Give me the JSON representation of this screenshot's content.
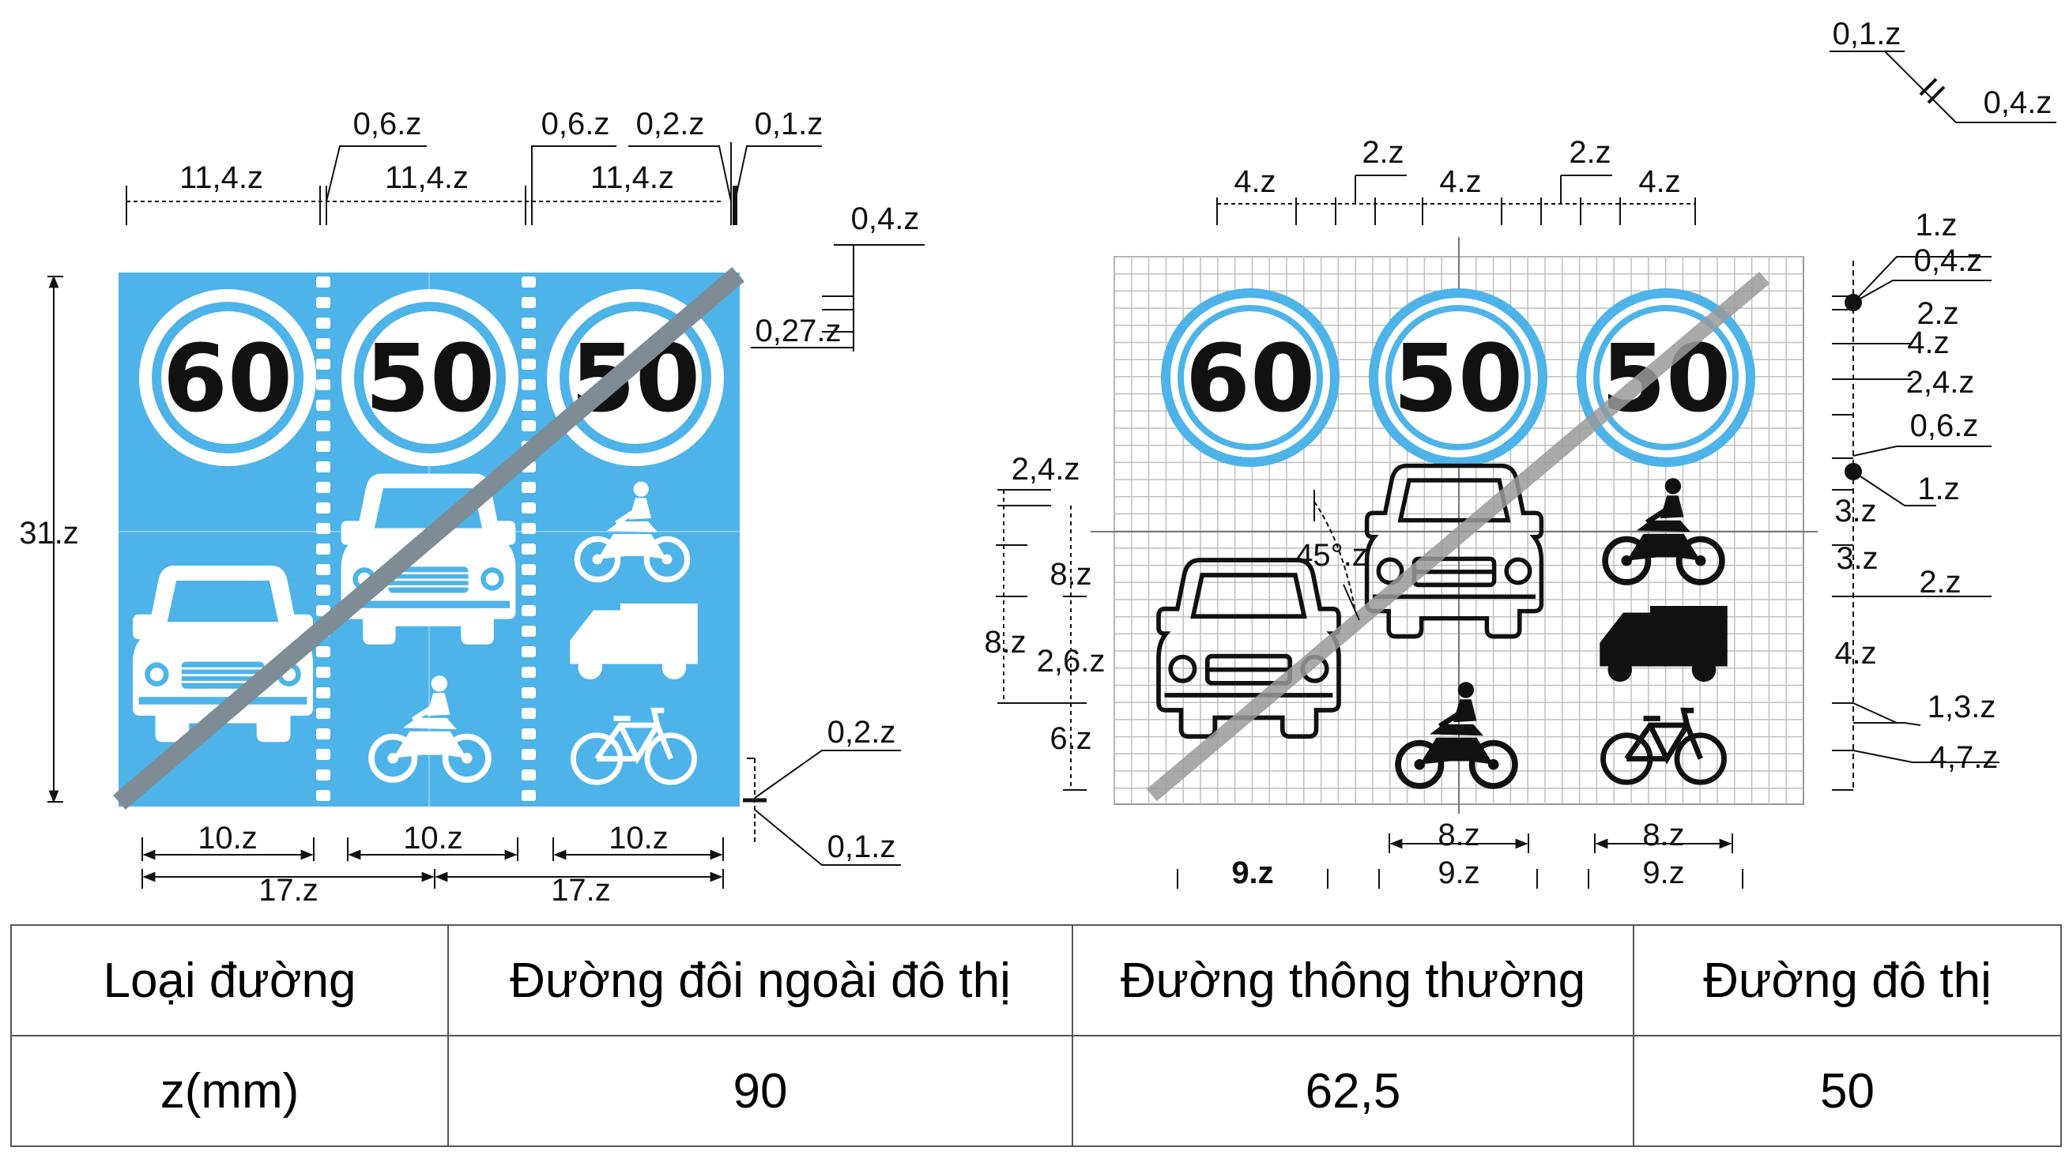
{
  "left_sign": {
    "colors": {
      "background": "#4db3e8",
      "stripe": "#ffffff",
      "bar": "#7e8c96",
      "ring": "#ffffff"
    },
    "speeds": [
      "60",
      "50",
      "50"
    ],
    "dims_top": [
      "11,4.z",
      "11,4.z",
      "11,4.z"
    ],
    "dims_top_small": [
      "0,6.z",
      "0,6.z",
      "0,2.z",
      "0,1.z"
    ],
    "dims_right": [
      "0,4.z",
      "0,27.z",
      "0,2.z",
      "0,1.z"
    ],
    "dim_height": "31.z",
    "dims_bottom": [
      "10.z",
      "10.z",
      "10.z"
    ],
    "dims_bottom2": [
      "17.z",
      "17.z"
    ]
  },
  "right_sign": {
    "colors": {
      "grid": "#bfbfbf",
      "ring": "#4db3e8",
      "bar": "#9a9a9a"
    },
    "speeds": [
      "60",
      "50",
      "50"
    ],
    "dims_top": [
      "4.z",
      "4.z",
      "4.z"
    ],
    "dims_top_gap": [
      "2.z",
      "2.z"
    ],
    "dims_corner": [
      "0,1.z",
      "0,4.z"
    ],
    "dims_right": [
      "1.z",
      "0,4.z",
      "2.z",
      "4.z",
      "2,4.z",
      "0,6.z",
      "1.z",
      "3.z",
      "3.z",
      "2.z",
      "4.z",
      "1,3.z",
      "4,7.z"
    ],
    "dims_left": [
      "2,4.z",
      "8.z",
      "8.z",
      "2,6.z",
      "6.z"
    ],
    "angle": "45°.z",
    "dims_bottom": [
      "8.z",
      "8.z"
    ],
    "dims_bottom2": [
      "9.z",
      "9.z",
      "9.z"
    ]
  },
  "table": {
    "header": [
      "Loại đường",
      "Đường đôi ngoài đô thị",
      "Đường thông thường",
      "Đường đô thị"
    ],
    "row": [
      "z(mm)",
      "90",
      "62,5",
      "50"
    ]
  }
}
